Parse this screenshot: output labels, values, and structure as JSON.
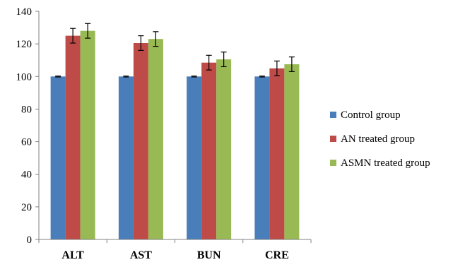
{
  "chart_data": {
    "type": "bar",
    "categories": [
      "ALT",
      "AST",
      "BUN",
      "CRE"
    ],
    "series": [
      {
        "name": "Control group",
        "color": "#4a7ebb",
        "values": [
          100,
          100,
          100,
          100
        ],
        "errors": [
          0.3,
          0.3,
          0.3,
          0.3
        ]
      },
      {
        "name": "AN treated group",
        "color": "#be4b48",
        "values": [
          125,
          120.5,
          108.5,
          105
        ],
        "errors": [
          4.5,
          4.5,
          4.5,
          4.5
        ]
      },
      {
        "name": "ASMN treated group",
        "color": "#98b954",
        "values": [
          128,
          123,
          110.5,
          107.5
        ],
        "errors": [
          4.5,
          4.5,
          4.5,
          4.5
        ]
      }
    ],
    "ylim": [
      0,
      140
    ],
    "yticks": [
      0,
      20,
      40,
      60,
      80,
      100,
      120,
      140
    ],
    "grid": false,
    "legend_position": "right",
    "title": "",
    "xlabel": "",
    "ylabel": ""
  }
}
